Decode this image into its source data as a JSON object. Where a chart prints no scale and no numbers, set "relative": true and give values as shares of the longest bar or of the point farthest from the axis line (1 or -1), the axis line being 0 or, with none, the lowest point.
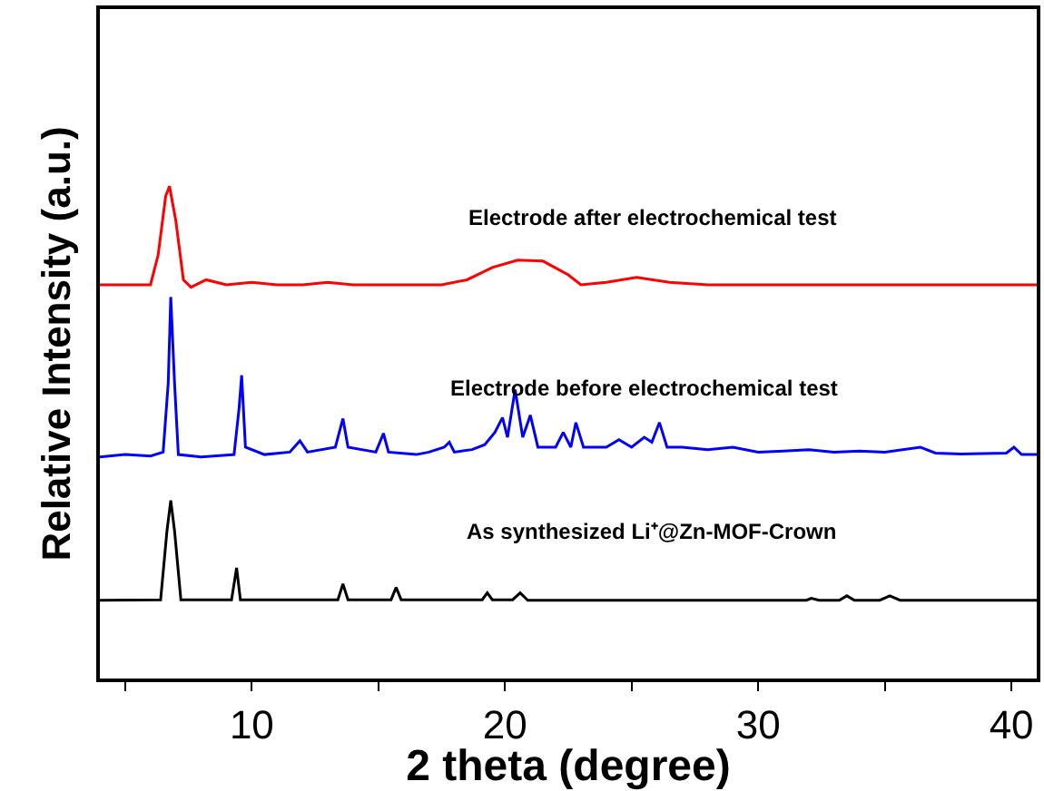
{
  "chart_data": {
    "type": "line",
    "relative": true,
    "xlabel": "2 theta (degree)",
    "ylabel": "Relative Intensity (a.u.)",
    "xlim": [
      4,
      41
    ],
    "xticks": [
      {
        "value": 5,
        "label": null
      },
      10,
      {
        "value": 15,
        "label": null
      },
      20,
      {
        "value": 25,
        "label": null
      },
      30,
      {
        "value": 35,
        "label": null
      },
      40
    ],
    "tick_labels": "x",
    "grid": false,
    "legend": false,
    "marker": "none",
    "line_style": "solid",
    "series": [
      {
        "name": "Electrode after electrochemical test",
        "color": "#ff0000",
        "x": [
          4,
          5.5,
          6.0,
          6.3,
          6.6,
          6.75,
          7.0,
          7.3,
          7.6,
          8.2,
          9,
          10,
          11,
          12,
          13,
          14,
          16,
          17.5,
          18.5,
          19.5,
          20.5,
          21.5,
          22.5,
          23.0,
          24,
          25.2,
          26.5,
          28,
          30,
          32,
          34,
          36,
          38,
          40,
          41
        ],
        "values": [
          0.8,
          0.8,
          0.8,
          0.86,
          0.98,
          1.0,
          0.93,
          0.81,
          0.795,
          0.81,
          0.8,
          0.805,
          0.8,
          0.8,
          0.805,
          0.8,
          0.8,
          0.8,
          0.81,
          0.835,
          0.85,
          0.848,
          0.82,
          0.8,
          0.805,
          0.815,
          0.805,
          0.8,
          0.8,
          0.8,
          0.8,
          0.8,
          0.8,
          0.8,
          0.8
        ]
      },
      {
        "name": "Electrode before electrochemical test",
        "color": "#0000ff",
        "x": [
          4,
          5,
          6,
          6.5,
          6.7,
          6.8,
          6.95,
          7.1,
          8,
          9.3,
          9.5,
          9.6,
          9.75,
          10.5,
          11.5,
          11.9,
          12.2,
          13.3,
          13.6,
          13.8,
          14.9,
          15.2,
          15.4,
          16.5,
          17,
          17.6,
          17.8,
          18,
          18.7,
          19.2,
          19.6,
          19.9,
          20.1,
          20.4,
          20.7,
          21,
          21.3,
          22,
          22.3,
          22.6,
          22.8,
          23.1,
          24,
          24.5,
          25,
          25.5,
          25.8,
          26.1,
          26.4,
          27,
          28,
          29,
          30,
          31,
          32,
          33,
          34,
          35,
          36.4,
          37,
          38,
          39.8,
          40.1,
          40.4,
          41
        ],
        "values": [
          0.45,
          0.455,
          0.452,
          0.46,
          0.6,
          0.775,
          0.6,
          0.455,
          0.45,
          0.455,
          0.55,
          0.616,
          0.47,
          0.455,
          0.46,
          0.483,
          0.46,
          0.47,
          0.528,
          0.47,
          0.46,
          0.498,
          0.46,
          0.455,
          0.46,
          0.47,
          0.48,
          0.46,
          0.465,
          0.475,
          0.5,
          0.53,
          0.49,
          0.587,
          0.49,
          0.535,
          0.47,
          0.47,
          0.5,
          0.47,
          0.52,
          0.47,
          0.47,
          0.485,
          0.47,
          0.49,
          0.48,
          0.52,
          0.47,
          0.47,
          0.465,
          0.47,
          0.46,
          0.462,
          0.465,
          0.46,
          0.462,
          0.46,
          0.47,
          0.458,
          0.456,
          0.458,
          0.47,
          0.455,
          0.455
        ]
      },
      {
        "name": "As synthesized Li⁺@Zn-MOF-Crown",
        "color": "#000000",
        "x": [
          4,
          6.4,
          6.65,
          6.8,
          6.95,
          7.2,
          9.2,
          9.4,
          9.55,
          13.4,
          13.6,
          13.8,
          15.5,
          15.7,
          15.9,
          19.1,
          19.3,
          19.5,
          20.3,
          20.6,
          20.9,
          30,
          31.9,
          32.1,
          32.4,
          33.2,
          33.5,
          33.8,
          34.8,
          35.2,
          35.6,
          41
        ],
        "values": [
          0.159,
          0.16,
          0.3,
          0.362,
          0.3,
          0.16,
          0.16,
          0.225,
          0.16,
          0.16,
          0.192,
          0.16,
          0.16,
          0.185,
          0.16,
          0.16,
          0.174,
          0.16,
          0.16,
          0.174,
          0.159,
          0.159,
          0.159,
          0.163,
          0.159,
          0.159,
          0.168,
          0.159,
          0.159,
          0.168,
          0.159,
          0.159
        ]
      }
    ]
  }
}
